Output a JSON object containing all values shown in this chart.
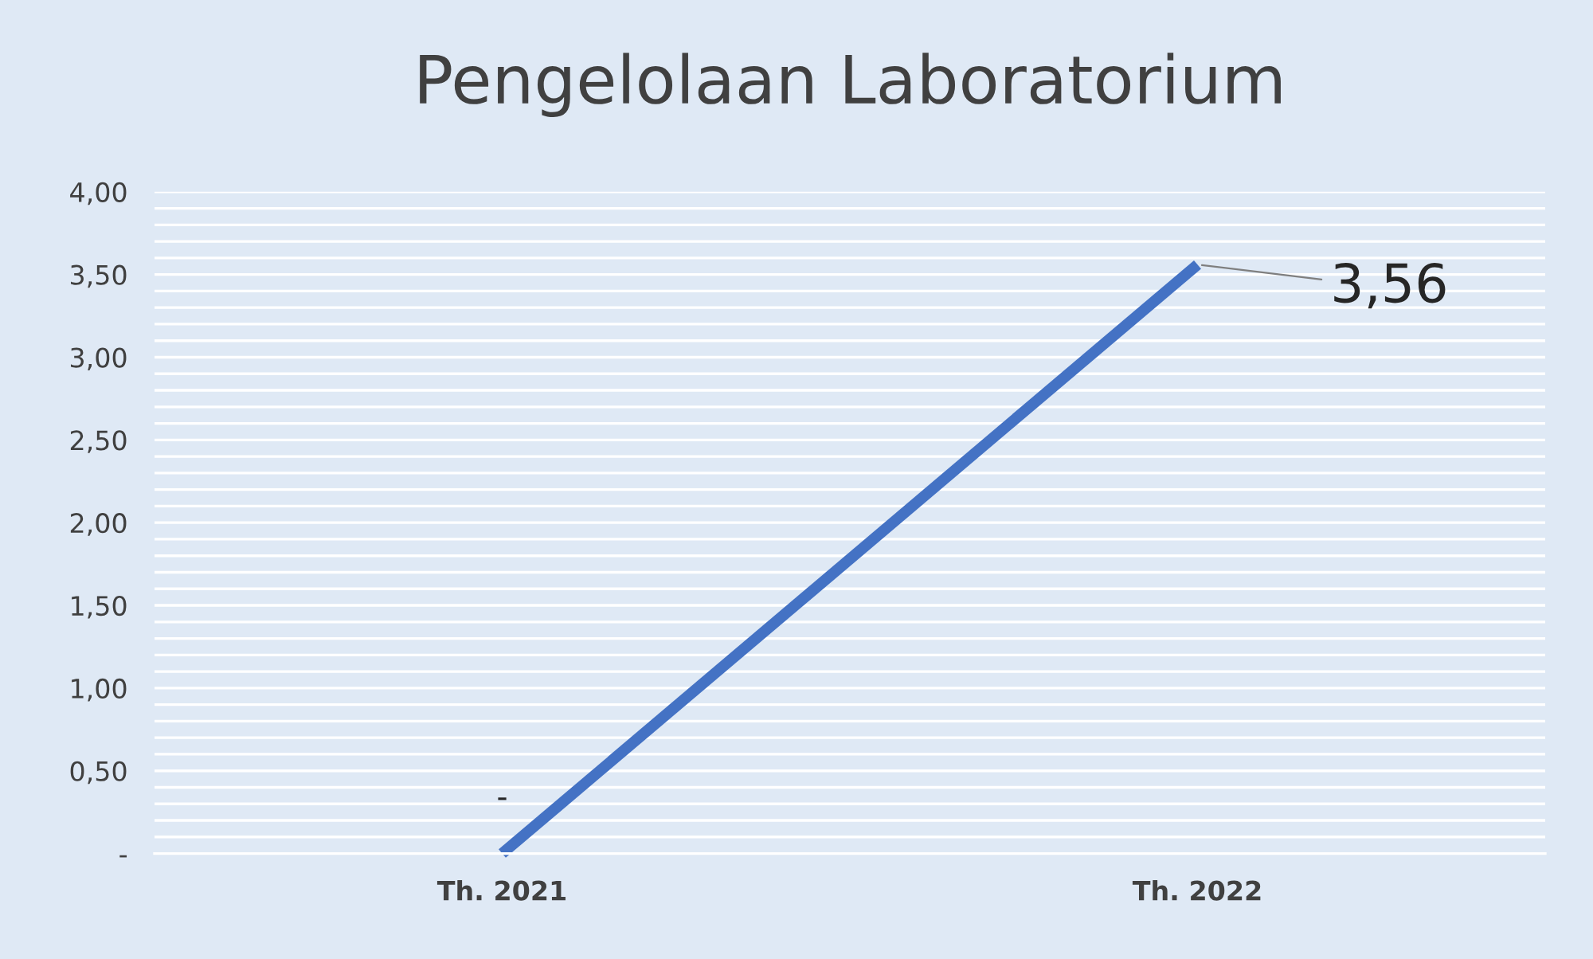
{
  "chart_data": {
    "type": "line",
    "title": "Pengelolaan Laboratorium",
    "categories": [
      "Th. 2021",
      "Th. 2022"
    ],
    "series": [
      {
        "color": "#4472c4",
        "values": [
          0,
          3.56
        ]
      }
    ],
    "value_labels": [
      "-",
      "3,56"
    ],
    "ylim": [
      0,
      4
    ],
    "yticks": [
      {
        "value": 0,
        "label": "-"
      },
      {
        "value": 0.1,
        "label": null
      },
      {
        "value": 0.2,
        "label": null
      },
      {
        "value": 0.3,
        "label": null
      },
      {
        "value": 0.4,
        "label": null
      },
      {
        "value": 0.5,
        "label": "0,50"
      },
      {
        "value": 0.6,
        "label": null
      },
      {
        "value": 0.7,
        "label": null
      },
      {
        "value": 0.8,
        "label": null
      },
      {
        "value": 0.9,
        "label": null
      },
      {
        "value": 1,
        "label": "1,00"
      },
      {
        "value": 1.1,
        "label": null
      },
      {
        "value": 1.2,
        "label": null
      },
      {
        "value": 1.3,
        "label": null
      },
      {
        "value": 1.4,
        "label": null
      },
      {
        "value": 1.5,
        "label": "1,50"
      },
      {
        "value": 1.6,
        "label": null
      },
      {
        "value": 1.7,
        "label": null
      },
      {
        "value": 1.8,
        "label": null
      },
      {
        "value": 1.9,
        "label": null
      },
      {
        "value": 2,
        "label": "2,00"
      },
      {
        "value": 2.1,
        "label": null
      },
      {
        "value": 2.2,
        "label": null
      },
      {
        "value": 2.3,
        "label": null
      },
      {
        "value": 2.4,
        "label": null
      },
      {
        "value": 2.5,
        "label": "2,50"
      },
      {
        "value": 2.6,
        "label": null
      },
      {
        "value": 2.7,
        "label": null
      },
      {
        "value": 2.8,
        "label": null
      },
      {
        "value": 2.9,
        "label": null
      },
      {
        "value": 3,
        "label": "3,00"
      },
      {
        "value": 3.1,
        "label": null
      },
      {
        "value": 3.2,
        "label": null
      },
      {
        "value": 3.3,
        "label": null
      },
      {
        "value": 3.4,
        "label": null
      },
      {
        "value": 3.5,
        "label": "3,50"
      },
      {
        "value": 3.6,
        "label": null
      },
      {
        "value": 3.7,
        "label": null
      },
      {
        "value": 3.8,
        "label": null
      },
      {
        "value": 3.9,
        "label": null
      },
      {
        "value": 4,
        "label": "4,00"
      }
    ],
    "grid": "y",
    "marker": "none",
    "line_style": "solid",
    "legend": false
  }
}
